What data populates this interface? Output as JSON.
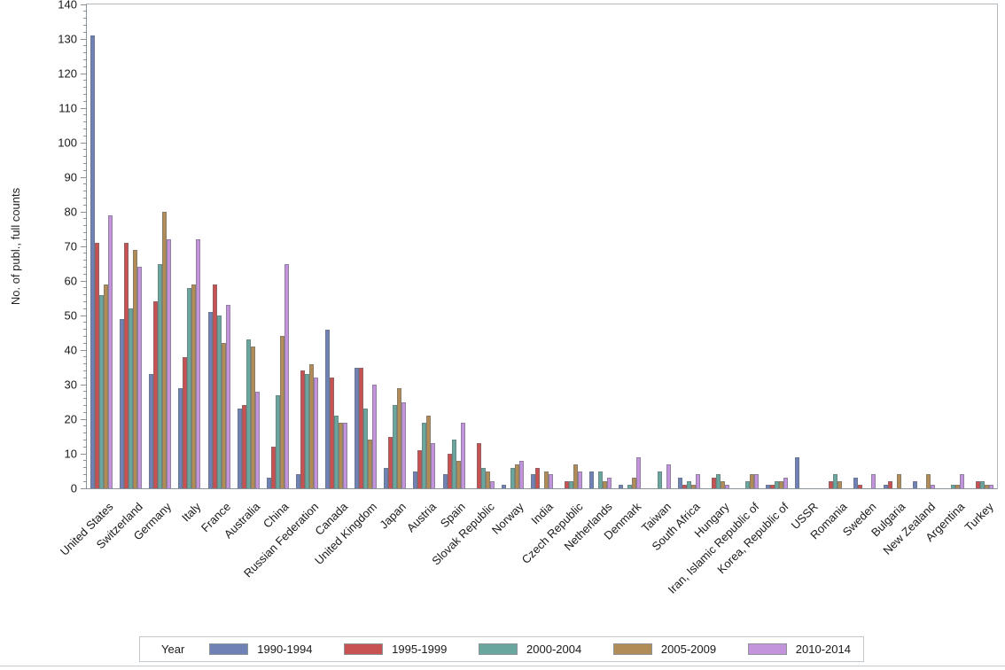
{
  "chart_data": {
    "type": "bar",
    "title": "",
    "ylabel": "No. of publ., full counts",
    "xlabel": "",
    "ylim": [
      0,
      140
    ],
    "ytick_major": 10,
    "ytick_minor": 2,
    "grid": false,
    "legend_title": "Year",
    "legend_position": "bottom",
    "categories": [
      "United States",
      "Switzerland",
      "Germany",
      "Italy",
      "France",
      "Australia",
      "China",
      "Russian Federation",
      "Canada",
      "United Kingdom",
      "Japan",
      "Austria",
      "Spain",
      "Slovak Republic",
      "Norway",
      "India",
      "Czech Republic",
      "Netherlands",
      "Denmark",
      "Taiwan",
      "South Africa",
      "Hungary",
      "Iran, Islamic Republic of",
      "Korea, Republic of",
      "USSR",
      "Romania",
      "Sweden",
      "Bulgaria",
      "New Zealand",
      "Argentina",
      "Turkey"
    ],
    "series": [
      {
        "name": "1990-1994",
        "color": "#7081b5",
        "values": [
          131,
          49,
          33,
          29,
          51,
          23,
          3,
          4,
          46,
          35,
          6,
          5,
          4,
          0,
          1,
          4,
          0,
          5,
          1,
          0,
          3,
          0,
          0,
          1,
          9,
          0,
          3,
          1,
          2,
          0,
          0
        ]
      },
      {
        "name": "1995-1999",
        "color": "#c85252",
        "values": [
          71,
          71,
          54,
          38,
          59,
          24,
          12,
          34,
          32,
          35,
          15,
          11,
          10,
          13,
          0,
          6,
          2,
          0,
          0,
          0,
          1,
          3,
          0,
          1,
          0,
          2,
          1,
          2,
          0,
          0,
          2
        ]
      },
      {
        "name": "2000-2004",
        "color": "#69a69e",
        "values": [
          56,
          52,
          65,
          58,
          50,
          43,
          27,
          33,
          21,
          23,
          24,
          19,
          14,
          6,
          6,
          0,
          2,
          5,
          1,
          5,
          2,
          4,
          2,
          2,
          0,
          4,
          0,
          0,
          0,
          1,
          2
        ]
      },
      {
        "name": "2005-2009",
        "color": "#b18c57",
        "values": [
          59,
          69,
          80,
          59,
          42,
          41,
          44,
          36,
          19,
          14,
          29,
          21,
          8,
          5,
          7,
          5,
          7,
          2,
          3,
          0,
          1,
          2,
          4,
          2,
          0,
          2,
          0,
          4,
          4,
          1,
          1
        ]
      },
      {
        "name": "2010-2014",
        "color": "#c394dc",
        "values": [
          79,
          64,
          72,
          72,
          53,
          28,
          65,
          32,
          19,
          30,
          25,
          13,
          19,
          2,
          8,
          4,
          5,
          3,
          9,
          7,
          4,
          1,
          4,
          3,
          0,
          0,
          4,
          0,
          1,
          4,
          1
        ]
      }
    ]
  }
}
